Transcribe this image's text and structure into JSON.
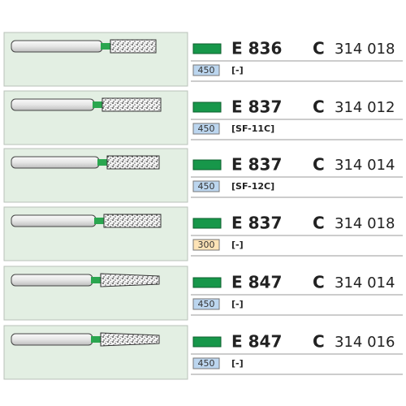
{
  "items": [
    {
      "model": "E 836",
      "shape": "C",
      "number": "314 018",
      "speed": "450",
      "variant": "[-]"
    },
    {
      "model": "E 837",
      "shape": "C",
      "number": "314 012",
      "speed": "450",
      "variant": "[SF-11C]"
    },
    {
      "model": "E 837",
      "shape": "C",
      "number": "314 014",
      "speed": "450",
      "variant": "[SF-12C]"
    },
    {
      "model": "E 837",
      "shape": "C",
      "number": "314 018",
      "speed": "300",
      "variant": "[-]"
    },
    {
      "model": "E 847",
      "shape": "C",
      "number": "314 014",
      "speed": "450",
      "variant": "[-]"
    },
    {
      "model": "E 847",
      "shape": "C",
      "number": "314 016",
      "speed": "450",
      "variant": "[-]"
    }
  ]
}
